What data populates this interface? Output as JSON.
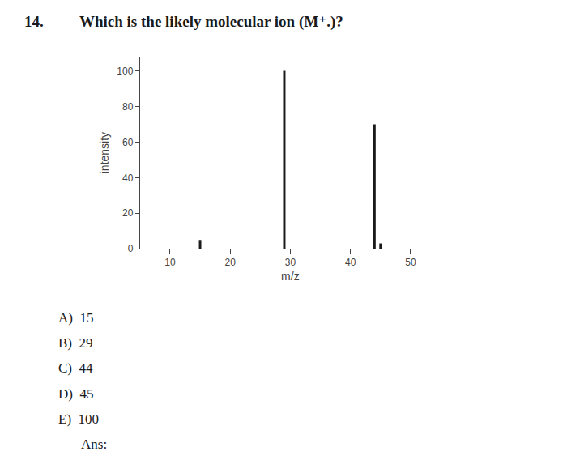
{
  "chart_data": {
    "type": "bar",
    "title": "Which is the likely molecular ion (M⁺.)?",
    "x": [
      15,
      29,
      44,
      45
    ],
    "values": [
      5,
      100,
      70,
      3
    ],
    "color": "#1a1a1a",
    "xlabel": "m/z",
    "ylabel": "intensity",
    "xlim": [
      5,
      55
    ],
    "ylim": [
      0,
      108
    ],
    "xticks": [
      10,
      20,
      30,
      40,
      50
    ],
    "yticks": [
      0,
      20,
      40,
      60,
      80,
      100
    ],
    "grid": false,
    "annotations": [
      "14.",
      "A)  15",
      "B)  29",
      "C)  44",
      "D)  45",
      "E)  100",
      "Ans:"
    ]
  }
}
